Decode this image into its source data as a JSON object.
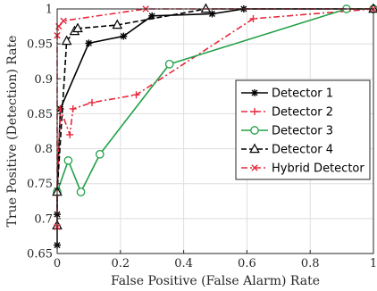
{
  "chart_data": {
    "type": "line",
    "xlabel": "False Positive (False Alarm) Rate",
    "ylabel": "True Positive (Detection) Rate",
    "xlim": [
      0,
      1
    ],
    "ylim": [
      0.65,
      1
    ],
    "xticks": [
      0,
      0.2,
      0.4,
      0.6,
      0.8,
      1
    ],
    "xtick_labels": [
      "0",
      "0.2",
      "0.4",
      "0.6",
      "0.8",
      "1"
    ],
    "yticks": [
      0.65,
      0.7,
      0.75,
      0.8,
      0.85,
      0.9,
      0.95,
      1
    ],
    "ytick_labels": [
      "0.65",
      "0.7",
      "0.75",
      "0.8",
      "0.85",
      "0.9",
      "0.95",
      "1"
    ],
    "grid": true,
    "legend_position": "center-right",
    "series": [
      {
        "name": "Detector 1",
        "color": "#000000",
        "dash": "solid",
        "marker": "asterisk",
        "x": [
          0,
          0,
          0,
          0.01,
          0.1,
          0.21,
          0.3,
          0.49,
          0.59,
          1
        ],
        "y": [
          0.662,
          0.706,
          0.74,
          0.857,
          0.951,
          0.961,
          0.99,
          0.993,
          1,
          1
        ]
      },
      {
        "name": "Detector 2",
        "color": "#e8283c",
        "dash": "dashdot",
        "marker": "plus",
        "x": [
          0,
          0.01,
          0.04,
          0.05,
          0.11,
          0.25,
          0.62,
          1
        ],
        "y": [
          0.738,
          0.857,
          0.82,
          0.857,
          0.866,
          0.877,
          0.986,
          1
        ]
      },
      {
        "name": "Detector 3",
        "color": "#22a047",
        "dash": "solid",
        "marker": "circle",
        "x": [
          0,
          0.035,
          0.075,
          0.135,
          0.355,
          0.915,
          1
        ],
        "y": [
          0.738,
          0.783,
          0.738,
          0.792,
          0.921,
          1,
          1
        ]
      },
      {
        "name": "Detector 4",
        "color": "#000000",
        "dash": "dashed",
        "marker": "triangle",
        "x": [
          0,
          0,
          0.03,
          0.055,
          0.065,
          0.19,
          0.47,
          1
        ],
        "y": [
          0.69,
          0.738,
          0.954,
          0.968,
          0.972,
          0.977,
          1,
          1
        ]
      },
      {
        "name": "Hybrid Detector",
        "color": "#e8283c",
        "dash": "dashdot",
        "marker": "x",
        "x": [
          0,
          0,
          0.005,
          0.02,
          0.28,
          1
        ],
        "y": [
          0.688,
          0.962,
          0.975,
          0.983,
          1,
          1
        ]
      }
    ]
  }
}
